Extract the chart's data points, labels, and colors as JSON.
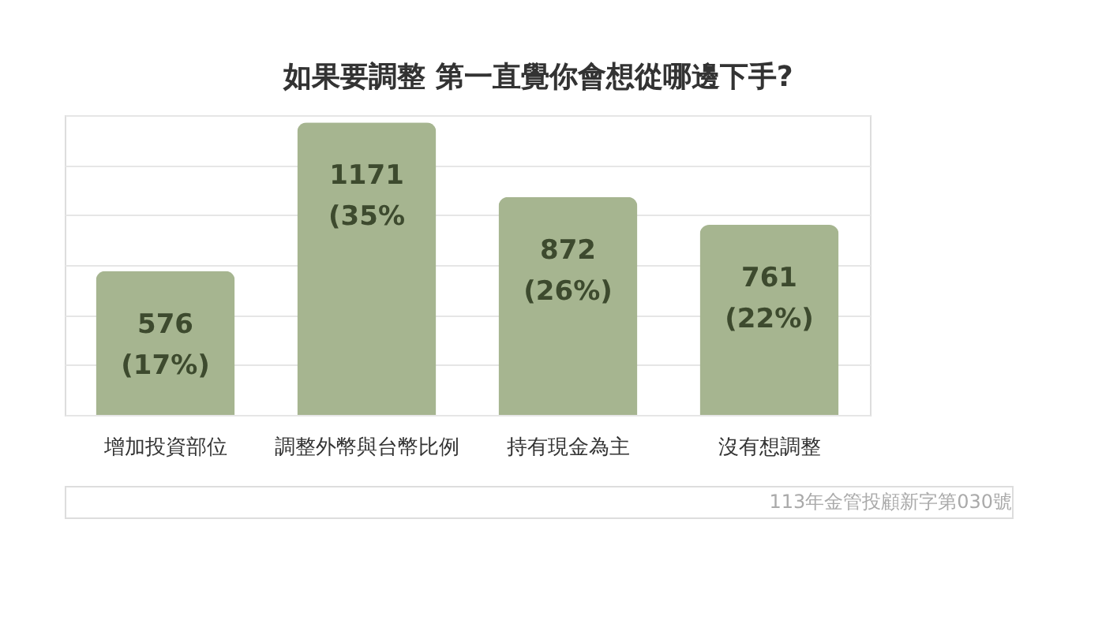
{
  "chart_data": {
    "type": "bar",
    "title": "如果要調整 第一直覺你會想從哪邊下手?",
    "categories": [
      "增加投資部位",
      "調整外幣與台幣比例",
      "持有現金為主",
      "沒有想調整"
    ],
    "values": [
      576,
      1171,
      872,
      761
    ],
    "value_labels": [
      "576\n(17%)",
      "1171\n(35%",
      "872\n(26%)",
      "761\n(22%)"
    ],
    "color": "#a6b590",
    "grid": "y",
    "tick_labels": "x",
    "annotations": [
      "113年金管投顧新字第030號"
    ]
  }
}
